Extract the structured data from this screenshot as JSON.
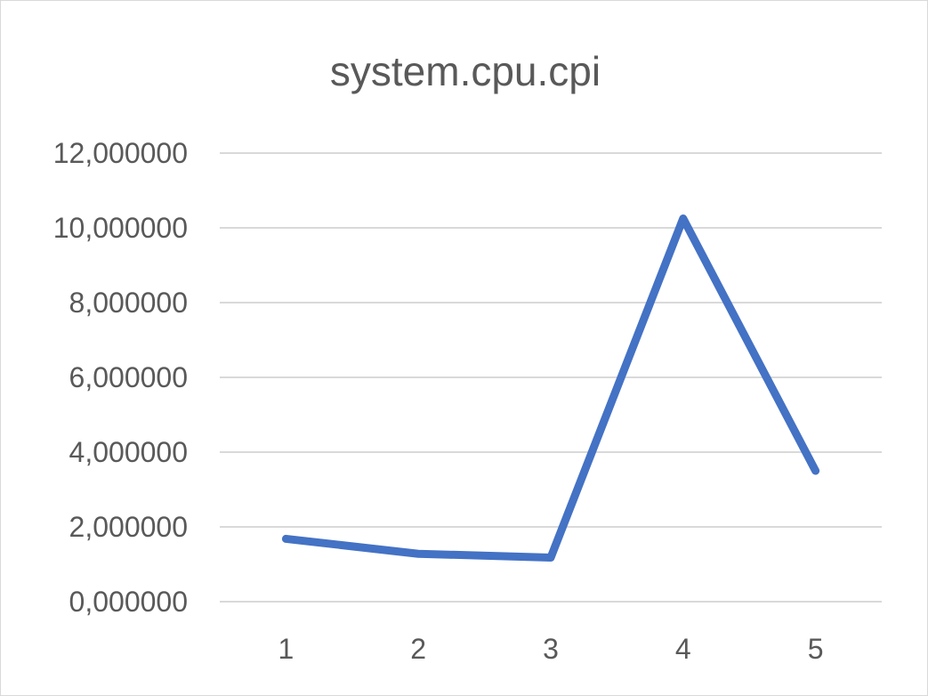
{
  "chart_data": {
    "type": "line",
    "title": "system.cpu.cpi",
    "xlabel": "",
    "ylabel": "",
    "categories": [
      "1",
      "2",
      "3",
      "4",
      "5"
    ],
    "series": [
      {
        "values": [
          1.68,
          1.28,
          1.18,
          10.25,
          3.5
        ]
      }
    ],
    "ylim": [
      0,
      12
    ],
    "y_ticks": [
      0,
      2,
      4,
      6,
      8,
      10,
      12
    ],
    "y_tick_labels": [
      "0,000000",
      "2,000000",
      "4,000000",
      "6,000000",
      "8,000000",
      "10,000000",
      "12,000000"
    ],
    "grid": true,
    "legend": "none",
    "line_color": "#4472C4"
  }
}
